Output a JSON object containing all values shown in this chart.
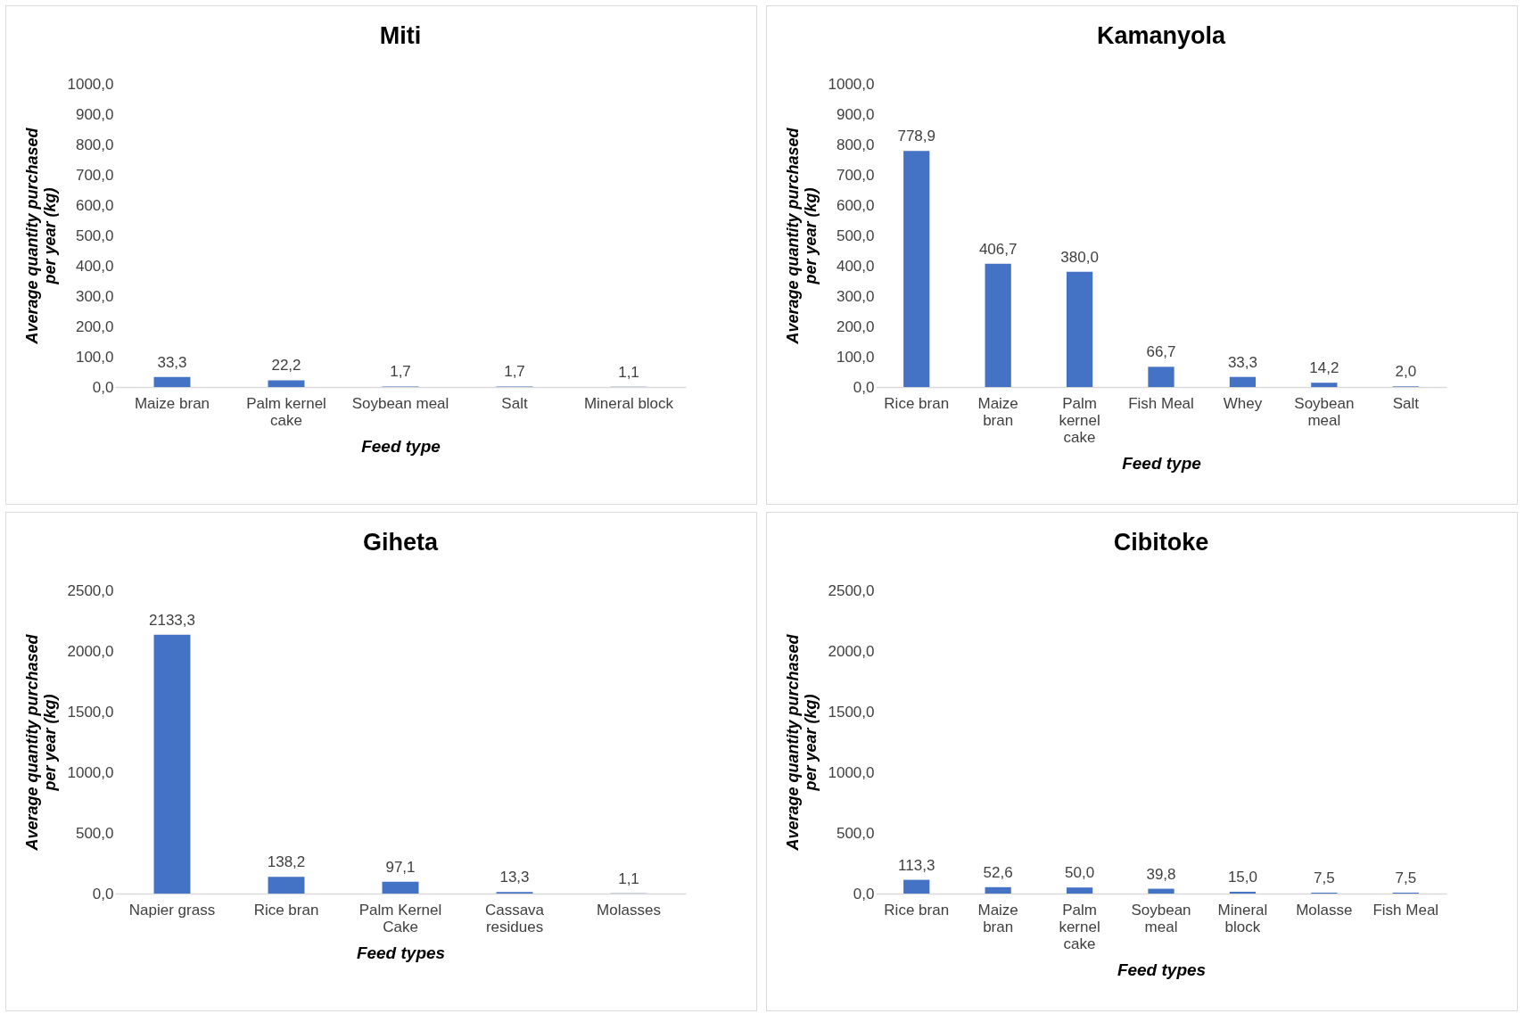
{
  "chart_data": [
    {
      "type": "bar",
      "title": "Miti",
      "xlabel": "Feed type",
      "ylabel": "Average quantity purchased per year (kg)",
      "categories": [
        "Maize bran",
        "Palm kernel cake",
        "Soybean meal",
        "Salt",
        "Mineral block"
      ],
      "values": [
        33.3,
        22.2,
        1.7,
        1.7,
        1.1
      ],
      "value_labels": [
        "33,3",
        "22,2",
        "1,7",
        "1,7",
        "1,1"
      ],
      "color": "#4472c4",
      "ylim": [
        0,
        1000
      ],
      "yticks": [
        {
          "value": 0,
          "label": "0,0"
        },
        {
          "value": 100,
          "label": "100,0"
        },
        {
          "value": 200,
          "label": "200,0"
        },
        {
          "value": 300,
          "label": "300,0"
        },
        {
          "value": 400,
          "label": "400,0"
        },
        {
          "value": 500,
          "label": "500,0"
        },
        {
          "value": 600,
          "label": "600,0"
        },
        {
          "value": 700,
          "label": "700,0"
        },
        {
          "value": 800,
          "label": "800,0"
        },
        {
          "value": 900,
          "label": "900,0"
        },
        {
          "value": 1000,
          "label": "1000,0"
        }
      ]
    },
    {
      "type": "bar",
      "title": "Kamanyola",
      "xlabel": "Feed type",
      "ylabel": "Average quantity purchased per year (kg)",
      "categories": [
        "Rice bran",
        "Maize bran",
        "Palm kernel cake",
        "Fish Meal",
        "Whey",
        "Soybean meal",
        "Salt"
      ],
      "values": [
        778.9,
        406.7,
        380.0,
        66.7,
        33.3,
        14.2,
        2.0
      ],
      "value_labels": [
        "778,9",
        "406,7",
        "380,0",
        "66,7",
        "33,3",
        "14,2",
        "2,0"
      ],
      "color": "#4472c4",
      "ylim": [
        0,
        1000
      ],
      "yticks": [
        {
          "value": 0,
          "label": "0,0"
        },
        {
          "value": 100,
          "label": "100,0"
        },
        {
          "value": 200,
          "label": "200,0"
        },
        {
          "value": 300,
          "label": "300,0"
        },
        {
          "value": 400,
          "label": "400,0"
        },
        {
          "value": 500,
          "label": "500,0"
        },
        {
          "value": 600,
          "label": "600,0"
        },
        {
          "value": 700,
          "label": "700,0"
        },
        {
          "value": 800,
          "label": "800,0"
        },
        {
          "value": 900,
          "label": "900,0"
        },
        {
          "value": 1000,
          "label": "1000,0"
        }
      ]
    },
    {
      "type": "bar",
      "title": "Giheta",
      "xlabel": "Feed types",
      "ylabel": "Average quantity purchased per year (kg)",
      "categories": [
        "Napier grass",
        "Rice bran",
        "Palm Kernel Cake",
        "Cassava residues",
        "Molasses"
      ],
      "values": [
        2133.3,
        138.2,
        97.1,
        13.3,
        1.1
      ],
      "value_labels": [
        "2133,3",
        "138,2",
        "97,1",
        "13,3",
        "1,1"
      ],
      "color": "#4472c4",
      "ylim": [
        0,
        2500
      ],
      "yticks": [
        {
          "value": 0,
          "label": "0,0"
        },
        {
          "value": 500,
          "label": "500,0"
        },
        {
          "value": 1000,
          "label": "1000,0"
        },
        {
          "value": 1500,
          "label": "1500,0"
        },
        {
          "value": 2000,
          "label": "2000,0"
        },
        {
          "value": 2500,
          "label": "2500,0"
        }
      ]
    },
    {
      "type": "bar",
      "title": "Cibitoke",
      "xlabel": "Feed types",
      "ylabel": "Average quantity purchased per year (kg)",
      "categories": [
        "Rice bran",
        "Maize bran",
        "Palm kernel cake",
        "Soybean meal",
        "Mineral block",
        "Molasse",
        "Fish Meal"
      ],
      "values": [
        113.3,
        52.6,
        50.0,
        39.8,
        15.0,
        7.5,
        7.5
      ],
      "value_labels": [
        "113,3",
        "52,6",
        "50,0",
        "39,8",
        "15,0",
        "7,5",
        "7,5"
      ],
      "color": "#4472c4",
      "ylim": [
        0,
        2500
      ],
      "yticks": [
        {
          "value": 0,
          "label": "0,0"
        },
        {
          "value": 500,
          "label": "500,0"
        },
        {
          "value": 1000,
          "label": "1000,0"
        },
        {
          "value": 1500,
          "label": "1500,0"
        },
        {
          "value": 2000,
          "label": "2000,0"
        },
        {
          "value": 2500,
          "label": "2500,0"
        }
      ]
    }
  ]
}
